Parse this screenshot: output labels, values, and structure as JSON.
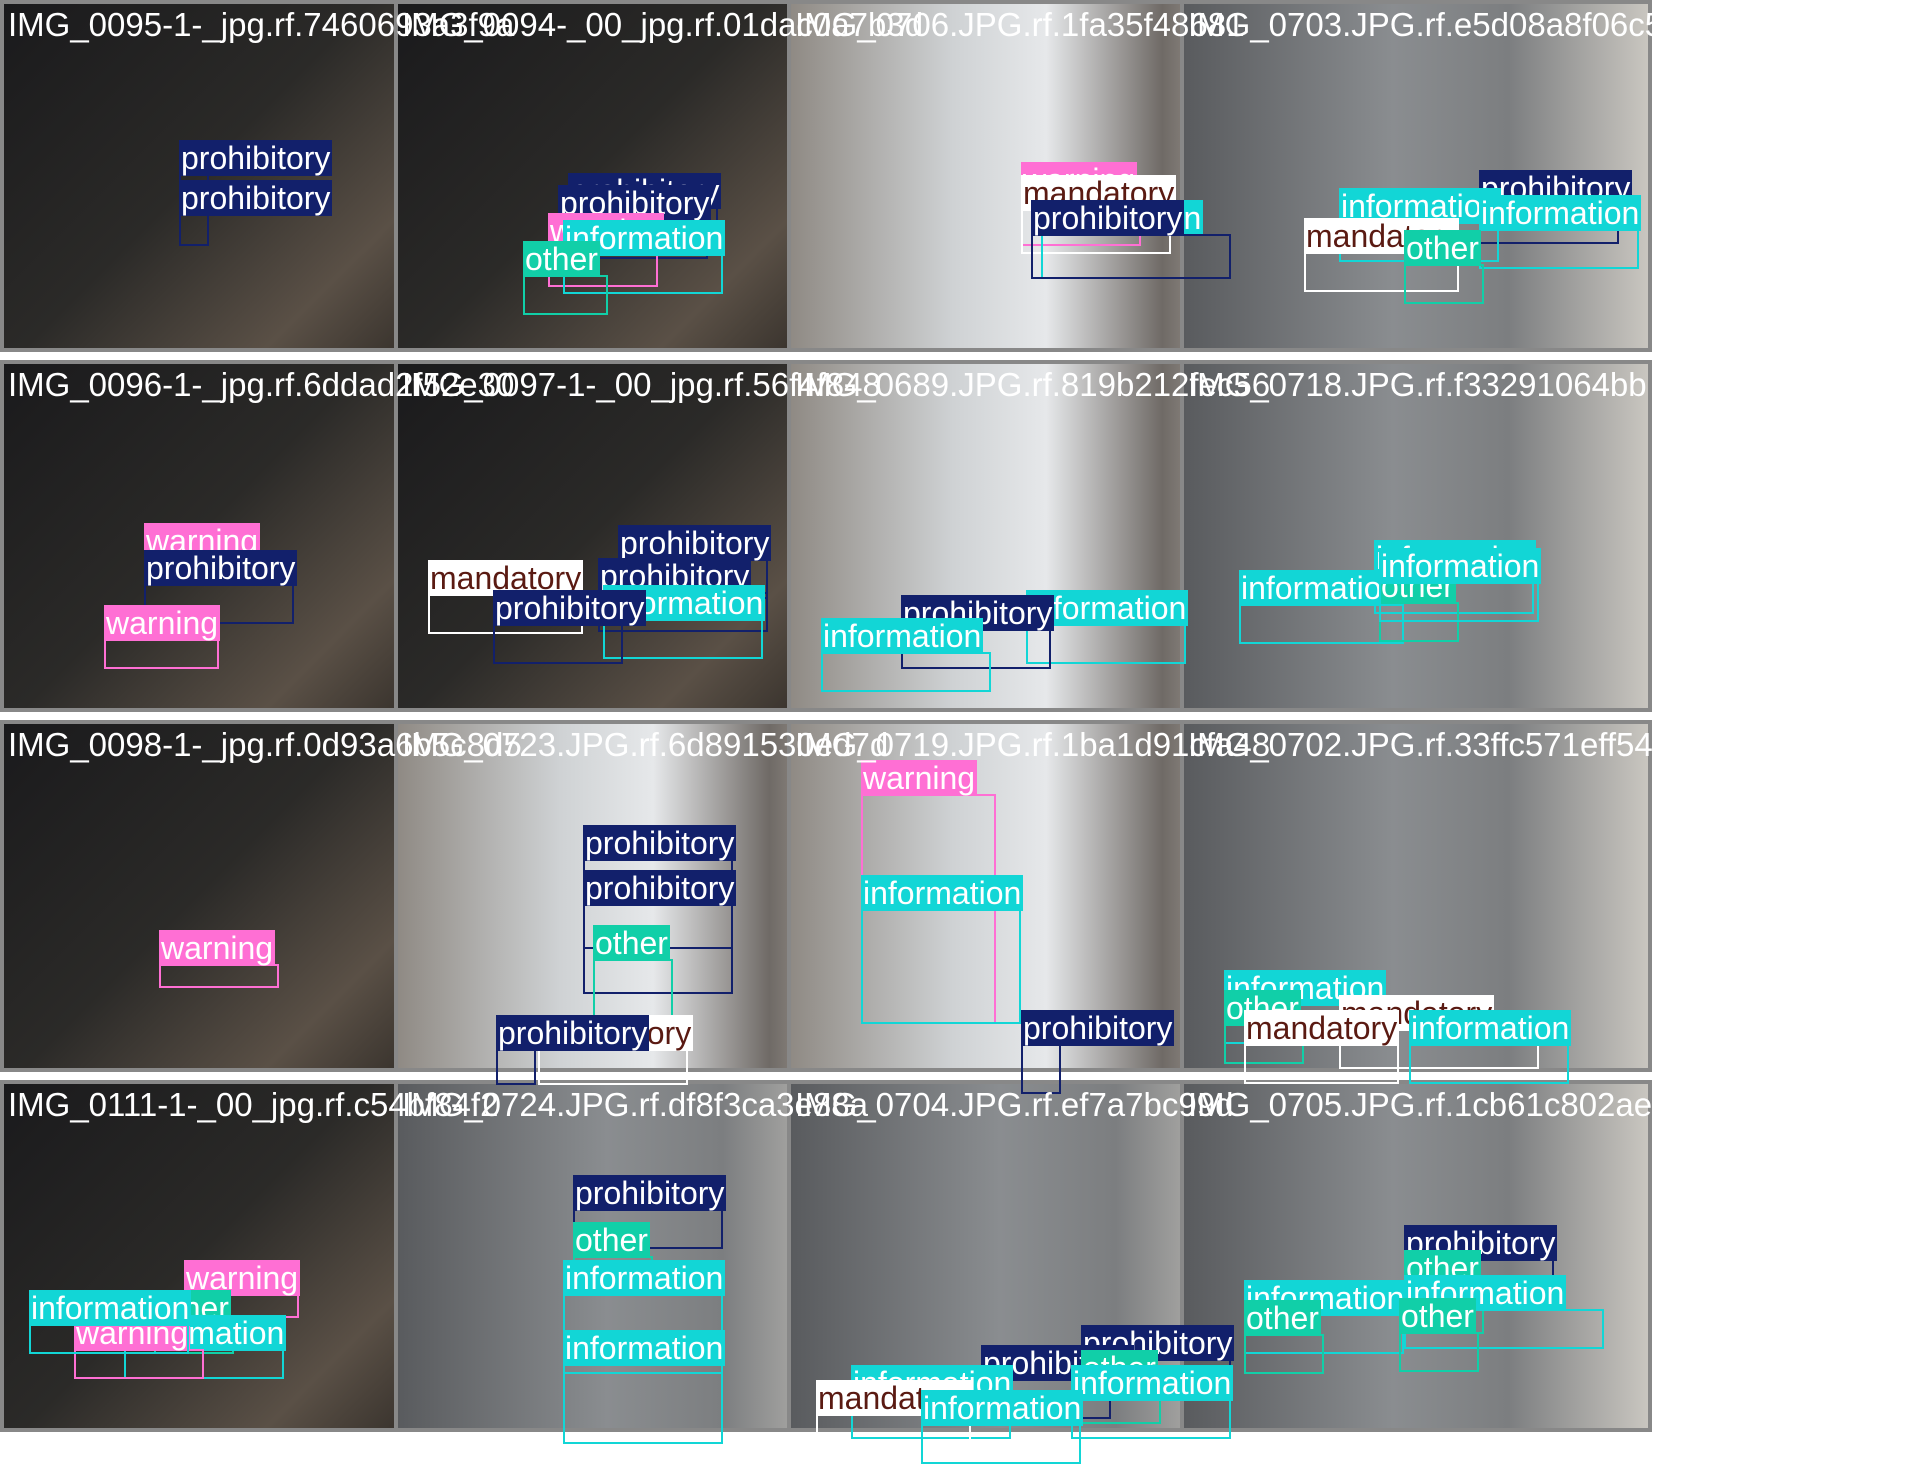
{
  "grid": {
    "classes": {
      "prohibitory": {
        "color": "#12206b",
        "text": "#ffffff"
      },
      "warning": {
        "color": "#ff6fd4",
        "text": "#ffffff"
      },
      "information": {
        "color": "#12d6d6",
        "text": "#ffffff"
      },
      "other": {
        "color": "#11cfa8",
        "text": "#ffffff"
      },
      "mandatory": {
        "color": "#ffffff",
        "text": "#5a1a12"
      }
    },
    "tiles": [
      {
        "title": "IMG_0095-1-_jpg.rf.7460693a3f9a",
        "bg": "night"
      },
      {
        "title": "IMG_0094-_00_jpg.rf.01dac0a7b3d",
        "bg": "night"
      },
      {
        "title": "IMG_0706.JPG.rf.1fa35f48681",
        "bg": "street"
      },
      {
        "title": "IMG_0703.JPG.rf.e5d08a8f06c5",
        "bg": "building"
      },
      {
        "title": "IMG_0096-1-_jpg.rf.6ddad2f52e30",
        "bg": "night"
      },
      {
        "title": "IMG_0097-1-_00_jpg.rf.56f4f848",
        "bg": "night"
      },
      {
        "title": "IMG_0689.JPG.rf.819b212fec56",
        "bg": "street"
      },
      {
        "title": "IMG_0718.JPG.rf.f33291064bb",
        "bg": "building"
      },
      {
        "title": "IMG_0098-1-_jpg.rf.0d93a6b5c8d5",
        "bg": "night"
      },
      {
        "title": "IMG_0723.JPG.rf.6d891530ed7d",
        "bg": "street"
      },
      {
        "title": "IMG_0719.JPG.rf.1ba1d91cfa48",
        "bg": "street"
      },
      {
        "title": "IMG_0702.JPG.rf.33ffc571eff54",
        "bg": "building"
      },
      {
        "title": "IMG_0111-1-_00_jpg.rf.c54bf84f2",
        "bg": "night"
      },
      {
        "title": "IMG_0724.JPG.rf.df8f3ca3e88a",
        "bg": "building"
      },
      {
        "title": "IMG_0704.JPG.rf.ef7a7bc99d",
        "bg": "building"
      },
      {
        "title": "IMG_0705.JPG.rf.1cb61c802ae",
        "bg": "building"
      }
    ]
  }
}
